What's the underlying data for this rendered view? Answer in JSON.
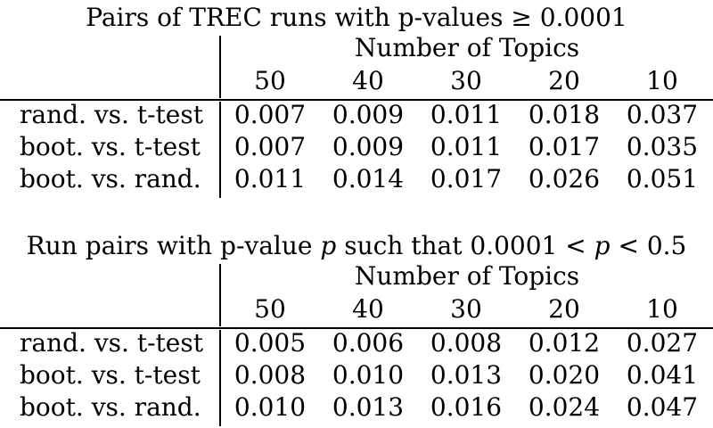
{
  "tables": [
    {
      "title": "Pairs of TREC runs with p-values ≥ 0.0001",
      "group_header": "Number of Topics",
      "columns": [
        "50",
        "40",
        "30",
        "20",
        "10"
      ],
      "rows": [
        {
          "label": "rand. vs. t-test",
          "values": [
            "0.007",
            "0.009",
            "0.011",
            "0.018",
            "0.037"
          ]
        },
        {
          "label": "boot. vs. t-test",
          "values": [
            "0.007",
            "0.009",
            "0.011",
            "0.017",
            "0.035"
          ]
        },
        {
          "label": "boot. vs. rand.",
          "values": [
            "0.011",
            "0.014",
            "0.017",
            "0.026",
            "0.051"
          ]
        }
      ]
    },
    {
      "title_pre": "Run pairs with p-value ",
      "title_var": "p",
      "title_mid": " such that 0.0001 < ",
      "title_var2": "p",
      "title_post": " < 0.5",
      "group_header": "Number of Topics",
      "columns": [
        "50",
        "40",
        "30",
        "20",
        "10"
      ],
      "rows": [
        {
          "label": "rand. vs. t-test",
          "values": [
            "0.005",
            "0.006",
            "0.008",
            "0.012",
            "0.027"
          ]
        },
        {
          "label": "boot. vs. t-test",
          "values": [
            "0.008",
            "0.010",
            "0.013",
            "0.020",
            "0.041"
          ]
        },
        {
          "label": "boot. vs. rand.",
          "values": [
            "0.010",
            "0.013",
            "0.016",
            "0.024",
            "0.047"
          ]
        }
      ]
    }
  ]
}
